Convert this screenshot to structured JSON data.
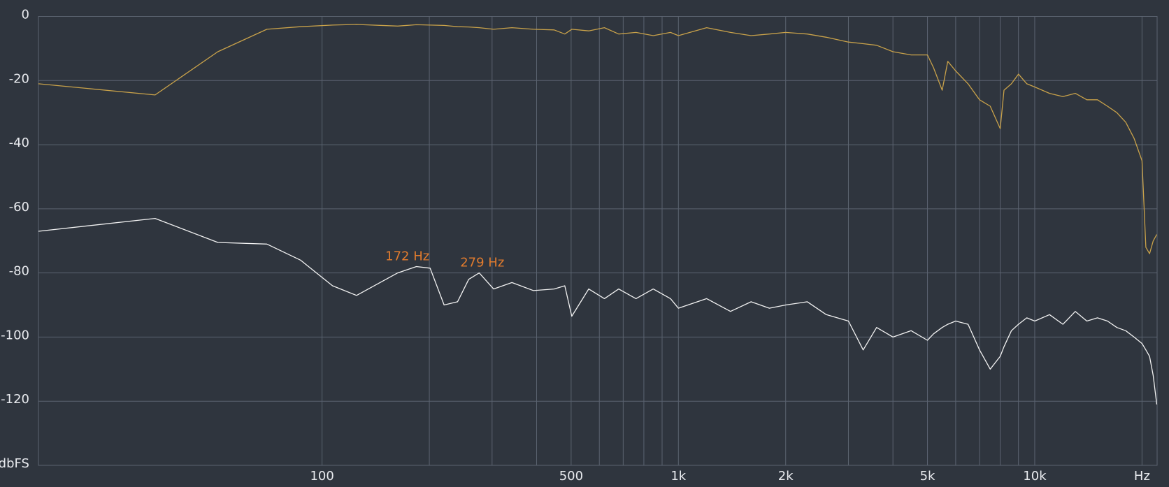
{
  "chart_data": {
    "type": "line",
    "log_x": true,
    "grid": true,
    "y_label": "dbFS",
    "xlim": [
      16,
      22050
    ],
    "ylim": [
      -140,
      0
    ],
    "yticks": [
      0,
      -20,
      -40,
      -60,
      -80,
      -100,
      -120
    ],
    "xticks": [
      100,
      500,
      {
        "value": 1000,
        "label": "1k"
      },
      {
        "value": 2000,
        "label": "2k"
      },
      {
        "value": 5000,
        "label": "5k"
      },
      {
        "value": 10000,
        "label": "10k"
      },
      {
        "value": 20000,
        "label": "Hz"
      }
    ],
    "x_minor_ticks": [
      200,
      300,
      400,
      600,
      700,
      800,
      900,
      3000,
      4000,
      6000,
      7000,
      8000,
      9000
    ],
    "x": [
      16,
      34,
      51,
      70,
      87,
      107,
      125,
      163,
      184,
      201,
      220,
      240,
      258,
      276,
      303,
      341,
      392,
      448,
      480,
      502,
      560,
      620,
      680,
      760,
      850,
      950,
      1000,
      1200,
      1400,
      1600,
      1800,
      2000,
      2300,
      2600,
      3000,
      3300,
      3600,
      4000,
      4500,
      5000,
      5200,
      5500,
      5700,
      6000,
      6500,
      7000,
      7500,
      8000,
      8200,
      8600,
      9000,
      9500,
      10000,
      11000,
      12000,
      13000,
      14000,
      15000,
      16000,
      17000,
      18000,
      19000,
      20000,
      20500,
      21000,
      21500,
      22000
    ],
    "series": [
      {
        "color": "#c9a24a",
        "values": [
          -21,
          -24.5,
          -11,
          -4,
          -3.2,
          -2.7,
          -2.5,
          -3,
          -2.6,
          -2.7,
          -2.8,
          -3.2,
          -3.3,
          -3.5,
          -4,
          -3.5,
          -4,
          -4.2,
          -5.5,
          -4,
          -4.5,
          -3.5,
          -5.5,
          -5,
          -6,
          -5,
          -6,
          -3.5,
          -5,
          -6,
          -5.5,
          -5,
          -5.5,
          -6.5,
          -8,
          -8.5,
          -9,
          -11,
          -12,
          -12,
          -16,
          -23,
          -14,
          -17,
          -21,
          -26,
          -28,
          -35,
          -23,
          -21,
          -18,
          -21,
          -22,
          -24,
          -25,
          -24,
          -26,
          -26,
          -28,
          -30,
          -33,
          -38,
          -45,
          -72,
          -74,
          -70,
          -68
        ]
      },
      {
        "color": "#f2f2f2",
        "values": [
          -67,
          -63,
          -70.5,
          -71,
          -76,
          -84,
          -87,
          -80,
          -78,
          -78.5,
          -90,
          -89,
          -82,
          -80,
          -85,
          -83,
          -85.5,
          -85,
          -84,
          -93.5,
          -85,
          -88,
          -85,
          -88,
          -85,
          -88,
          -91,
          -88,
          -92,
          -89,
          -91,
          -90,
          -89,
          -93,
          -95,
          -104,
          -97,
          -100,
          -98,
          -101,
          -99,
          -97,
          -96,
          -95,
          -96,
          -104,
          -110,
          -106,
          -103,
          -98,
          -96,
          -94,
          -95,
          -93,
          -96,
          -92,
          -95,
          -94,
          -95,
          -97,
          -98,
          -100,
          -102,
          -104,
          -106,
          -112,
          -121
        ]
      }
    ],
    "annotations": [
      {
        "text": "172 Hz",
        "x": 172,
        "y": -78,
        "color": "#e07b2e"
      },
      {
        "text": "279 Hz",
        "x": 279,
        "y": -80,
        "color": "#e07b2e"
      }
    ]
  }
}
